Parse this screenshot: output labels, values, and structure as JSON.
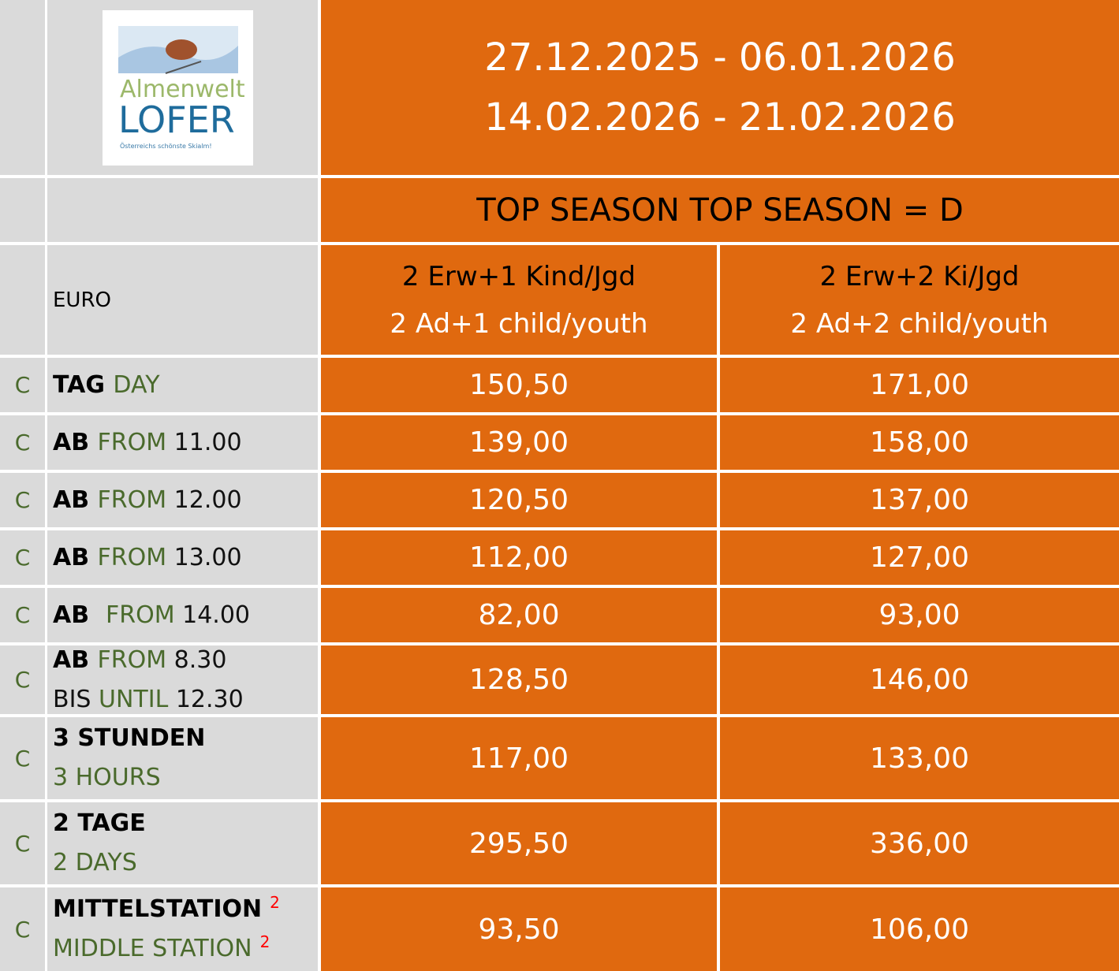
{
  "colors": {
    "orange": "#E0690F",
    "grey": "#DADADA",
    "green": "#4A6A2C",
    "footnote": "#FF0000"
  },
  "logo": {
    "line1": "Almenwelt",
    "line2": "LOFER",
    "tagline": "Österreichs schönste Skialm!"
  },
  "header": {
    "dates": [
      "27.12.2025 - 06.01.2026",
      "14.02.2026 - 21.02.2026"
    ],
    "season": "TOP SEASON TOP SEASON = D",
    "currency": "EURO",
    "columns": [
      {
        "de": "2 Erw+1 Kind/Jgd",
        "en": "2 Ad+1 child/youth"
      },
      {
        "de": "2 Erw+2 Ki/Jgd",
        "en": "2 Ad+2 child/youth"
      }
    ]
  },
  "rows": [
    {
      "code": "C",
      "lines": [
        [
          {
            "t": "TAG ",
            "s": "black"
          },
          {
            "t": "DAY",
            "s": "green"
          }
        ]
      ],
      "prices": [
        "150,50",
        "171,00"
      ]
    },
    {
      "code": "C",
      "lines": [
        [
          {
            "t": "AB ",
            "s": "black"
          },
          {
            "t": "FROM ",
            "s": "green"
          },
          {
            "t": "11.00",
            "s": "plain"
          }
        ]
      ],
      "prices": [
        "139,00",
        "158,00"
      ]
    },
    {
      "code": "C",
      "lines": [
        [
          {
            "t": "AB ",
            "s": "black"
          },
          {
            "t": "FROM ",
            "s": "green"
          },
          {
            "t": "12.00",
            "s": "plain"
          }
        ]
      ],
      "prices": [
        "120,50",
        "137,00"
      ]
    },
    {
      "code": "C",
      "lines": [
        [
          {
            "t": "AB ",
            "s": "black"
          },
          {
            "t": "FROM ",
            "s": "green"
          },
          {
            "t": "13.00",
            "s": "plain"
          }
        ]
      ],
      "prices": [
        "112,00",
        "127,00"
      ]
    },
    {
      "code": "C",
      "lines": [
        [
          {
            "t": "AB  ",
            "s": "black"
          },
          {
            "t": "FROM ",
            "s": "green"
          },
          {
            "t": "14.00",
            "s": "plain"
          }
        ]
      ],
      "prices": [
        "82,00",
        "93,00"
      ]
    },
    {
      "code": "C",
      "lines": [
        [
          {
            "t": "AB ",
            "s": "black"
          },
          {
            "t": "FROM ",
            "s": "green"
          },
          {
            "t": "8.30",
            "s": "plain"
          }
        ],
        [
          {
            "t": "BIS ",
            "s": "plain"
          },
          {
            "t": "UNTIL ",
            "s": "green"
          },
          {
            "t": "12.30",
            "s": "plain"
          }
        ]
      ],
      "prices": [
        "128,50",
        "146,00"
      ]
    },
    {
      "code": "C",
      "lines": [
        [
          {
            "t": "3 STUNDEN",
            "s": "black"
          }
        ],
        [
          {
            "t": "3 HOURS",
            "s": "green"
          }
        ]
      ],
      "prices": [
        "117,00",
        "133,00"
      ]
    },
    {
      "code": "C",
      "lines": [
        [
          {
            "t": "2 TAGE",
            "s": "black"
          }
        ],
        [
          {
            "t": "2 DAYS",
            "s": "green"
          }
        ]
      ],
      "prices": [
        "295,50",
        "336,00"
      ]
    },
    {
      "code": "C",
      "lines": [
        [
          {
            "t": "MITTELSTATION",
            "s": "black"
          },
          {
            "t": "2",
            "s": "sup"
          }
        ],
        [
          {
            "t": "MIDDLE STATION",
            "s": "green"
          },
          {
            "t": "2",
            "s": "sup"
          }
        ]
      ],
      "prices": [
        "93,50",
        "106,00"
      ]
    }
  ]
}
